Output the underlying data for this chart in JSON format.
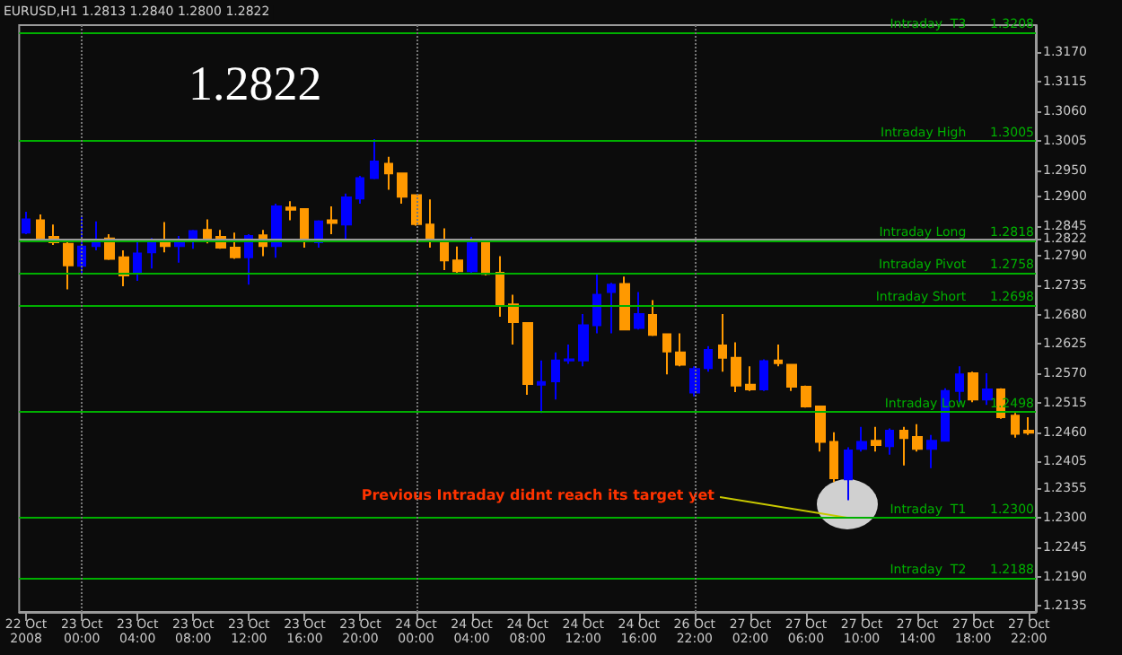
{
  "chart_data": {
    "type": "candlestick",
    "title": "1.2822",
    "subtitle": "EURUSD,H1 1.2813 1.2840 1.2800 1.2822",
    "categories": [
      "22 Oct 2008",
      null,
      null,
      null,
      "23 Oct 00:00",
      null,
      null,
      null,
      "23 Oct 04:00",
      null,
      null,
      null,
      "23 Oct 08:00",
      null,
      null,
      null,
      "23 Oct 12:00",
      null,
      null,
      null,
      "23 Oct 16:00",
      null,
      null,
      null,
      "23 Oct 20:00",
      null,
      null,
      null,
      "24 Oct 00:00",
      null,
      null,
      null,
      "24 Oct 04:00",
      null,
      null,
      null,
      "24 Oct 08:00",
      null,
      null,
      null,
      "24 Oct 12:00",
      null,
      null,
      null,
      "24 Oct 16:00",
      null,
      null,
      null,
      "26 Oct 22:00",
      null,
      null,
      null,
      "27 Oct 02:00",
      null,
      null,
      null,
      "27 Oct 06:00",
      null,
      null,
      null,
      "27 Oct 10:00",
      null,
      null,
      null,
      "27 Oct 14:00",
      null,
      null,
      null,
      "27 Oct 18:00",
      null,
      null,
      null,
      "27 Oct 22:00"
    ],
    "ohlc": [
      [
        1.2833,
        1.2872,
        1.283,
        1.2858
      ],
      [
        1.2856,
        1.2867,
        1.282,
        1.2822
      ],
      [
        1.2825,
        1.2848,
        1.281,
        1.2815
      ],
      [
        1.2812,
        1.2815,
        1.2727,
        1.2772
      ],
      [
        1.2771,
        1.2866,
        1.2758,
        1.2807
      ],
      [
        1.2808,
        1.2854,
        1.28,
        1.282
      ],
      [
        1.2822,
        1.283,
        1.2782,
        1.2784
      ],
      [
        1.2787,
        1.28,
        1.2733,
        1.2753
      ],
      [
        1.2758,
        1.282,
        1.2743,
        1.2794
      ],
      [
        1.2796,
        1.2823,
        1.2766,
        1.2815
      ],
      [
        1.2815,
        1.2853,
        1.2796,
        1.2808
      ],
      [
        1.2808,
        1.2827,
        1.2777,
        1.2817
      ],
      [
        1.2817,
        1.2838,
        1.2803,
        1.2836
      ],
      [
        1.2838,
        1.2858,
        1.2813,
        1.2822
      ],
      [
        1.2825,
        1.2838,
        1.2803,
        1.2805
      ],
      [
        1.2805,
        1.2833,
        1.2784,
        1.2787
      ],
      [
        1.2787,
        1.283,
        1.2736,
        1.2827
      ],
      [
        1.2828,
        1.2838,
        1.2789,
        1.2808
      ],
      [
        1.2808,
        1.2887,
        1.2786,
        1.2882
      ],
      [
        1.288,
        1.2892,
        1.2856,
        1.2876
      ],
      [
        1.2877,
        1.2879,
        1.2805,
        1.2818
      ],
      [
        1.2815,
        1.2856,
        1.2805,
        1.2854
      ],
      [
        1.2856,
        1.2882,
        1.283,
        1.2851
      ],
      [
        1.2848,
        1.2906,
        1.282,
        1.2899
      ],
      [
        1.2897,
        1.2939,
        1.2887,
        1.2935
      ],
      [
        1.2935,
        1.3008,
        1.2933,
        1.2966
      ],
      [
        1.2962,
        1.2975,
        1.2913,
        1.2944
      ],
      [
        1.2944,
        1.2944,
        1.2887,
        1.29
      ],
      [
        1.2903,
        1.2903,
        1.2846,
        1.2849
      ],
      [
        1.2848,
        1.2895,
        1.2805,
        1.2818
      ],
      [
        1.2818,
        1.2841,
        1.2763,
        1.2781
      ],
      [
        1.2781,
        1.2807,
        1.2758,
        1.2761
      ],
      [
        1.2761,
        1.2825,
        1.2758,
        1.2817
      ],
      [
        1.2817,
        1.282,
        1.2753,
        1.2756
      ],
      [
        1.2758,
        1.2789,
        1.2676,
        1.2699
      ],
      [
        1.2699,
        1.2717,
        1.2624,
        1.2666
      ],
      [
        1.2664,
        1.2664,
        1.253,
        1.255
      ],
      [
        1.2549,
        1.2594,
        1.2496,
        1.2554
      ],
      [
        1.2555,
        1.2609,
        1.2521,
        1.2594
      ],
      [
        1.2594,
        1.2624,
        1.2588,
        1.2596
      ],
      [
        1.2594,
        1.2681,
        1.2583,
        1.266
      ],
      [
        1.266,
        1.2756,
        1.2645,
        1.2717
      ],
      [
        1.2722,
        1.2739,
        1.2645,
        1.2736
      ],
      [
        1.2737,
        1.2751,
        1.2651,
        1.2652
      ],
      [
        1.2655,
        1.2722,
        1.2652,
        1.2681
      ],
      [
        1.2679,
        1.2707,
        1.264,
        1.2642
      ],
      [
        1.2643,
        1.2643,
        1.2568,
        1.2611
      ],
      [
        1.2609,
        1.2645,
        1.2583,
        1.2586
      ],
      [
        1.2534,
        1.2583,
        1.2527,
        1.2578
      ],
      [
        1.258,
        1.2621,
        1.2573,
        1.2614
      ],
      [
        1.2622,
        1.2681,
        1.2573,
        1.2599
      ],
      [
        1.2599,
        1.2628,
        1.2535,
        1.2547
      ],
      [
        1.2549,
        1.2583,
        1.2537,
        1.254
      ],
      [
        1.254,
        1.2596,
        1.2537,
        1.2593
      ],
      [
        1.2594,
        1.2624,
        1.2583,
        1.2589
      ],
      [
        1.2586,
        1.2588,
        1.2537,
        1.2545
      ],
      [
        1.2545,
        1.2547,
        1.2506,
        1.2508
      ],
      [
        1.2508,
        1.2508,
        1.2424,
        1.2442
      ],
      [
        1.2442,
        1.246,
        1.2367,
        1.2374
      ],
      [
        1.2372,
        1.2432,
        1.2333,
        1.2426
      ],
      [
        1.2429,
        1.247,
        1.2424,
        1.2442
      ],
      [
        1.2444,
        1.247,
        1.2424,
        1.2436
      ],
      [
        1.2434,
        1.2467,
        1.2418,
        1.2463
      ],
      [
        1.2463,
        1.247,
        1.2398,
        1.2449
      ],
      [
        1.2451,
        1.2475,
        1.2424,
        1.2429
      ],
      [
        1.2429,
        1.2455,
        1.2393,
        1.2444
      ],
      [
        1.2444,
        1.2542,
        1.2444,
        1.2537
      ],
      [
        1.2537,
        1.2583,
        1.2516,
        1.2568
      ],
      [
        1.257,
        1.2573,
        1.2516,
        1.2521
      ],
      [
        1.2521,
        1.257,
        1.2511,
        1.254
      ],
      [
        1.254,
        1.2542,
        1.2485,
        1.2488
      ],
      [
        1.2491,
        1.2496,
        1.245,
        1.2457
      ],
      [
        1.2463,
        1.2488,
        1.2455,
        1.2459
      ]
    ],
    "colors": [
      "#0000ff",
      "#ff9900",
      "#ff9900",
      "#ff9900",
      "#0000ff",
      "#0000ff",
      "#ff9900",
      "#ff9900",
      "#0000ff",
      "#0000ff",
      "#ff9900",
      "#0000ff",
      "#0000ff",
      "#ff9900",
      "#ff9900",
      "#ff9900",
      "#0000ff",
      "#ff9900",
      "#0000ff",
      "#ff9900",
      "#ff9900",
      "#0000ff",
      "#ff9900",
      "#0000ff",
      "#0000ff",
      "#0000ff",
      "#ff9900",
      "#ff9900",
      "#ff9900",
      "#ff9900",
      "#ff9900",
      "#ff9900",
      "#0000ff",
      "#ff9900",
      "#ff9900",
      "#ff9900",
      "#ff9900",
      "#0000ff",
      "#0000ff",
      "#0000ff",
      "#0000ff",
      "#0000ff",
      "#0000ff",
      "#ff9900",
      "#0000ff",
      "#ff9900",
      "#ff9900",
      "#ff9900",
      "#0000ff",
      "#0000ff",
      "#ff9900",
      "#ff9900",
      "#ff9900",
      "#0000ff",
      "#ff9900",
      "#ff9900",
      "#ff9900",
      "#ff9900",
      "#ff9900",
      "#0000ff",
      "#0000ff",
      "#ff9900",
      "#0000ff",
      "#ff9900",
      "#ff9900",
      "#0000ff",
      "#0000ff",
      "#0000ff",
      "#ff9900",
      "#0000ff",
      "#ff9900",
      "#ff9900",
      "#ff9900"
    ],
    "ylim": [
      1.2124,
      1.3221
    ],
    "yticks": [
      {
        "value": 1.317,
        "label": "1.3170"
      },
      {
        "value": 1.3115,
        "label": "1.3115"
      },
      {
        "value": 1.306,
        "label": "1.3060"
      },
      {
        "value": 1.3005,
        "label": "1.3005"
      },
      {
        "value": 1.295,
        "label": "1.2950"
      },
      {
        "value": 1.29,
        "label": "1.2900"
      },
      {
        "value": 1.2845,
        "label": "1.2845"
      },
      {
        "value": 1.2822,
        "label": "1.2822"
      },
      {
        "value": 1.279,
        "label": "1.2790"
      },
      {
        "value": 1.2735,
        "label": "1.2735"
      },
      {
        "value": 1.268,
        "label": "1.2680"
      },
      {
        "value": 1.2625,
        "label": "1.2625"
      },
      {
        "value": 1.257,
        "label": "1.2570"
      },
      {
        "value": 1.2515,
        "label": "1.2515"
      },
      {
        "value": 1.246,
        "label": "1.2460"
      },
      {
        "value": 1.2405,
        "label": "1.2405"
      },
      {
        "value": 1.2355,
        "label": "1.2355"
      },
      {
        "value": 1.23,
        "label": "1.2300"
      },
      {
        "value": 1.2245,
        "label": "1.2245"
      },
      {
        "value": 1.219,
        "label": "1.2190"
      },
      {
        "value": 1.2135,
        "label": "1.2135"
      }
    ],
    "ref_lines": [
      {
        "axis": "y",
        "value": 1.3208,
        "label": "Intraday  T3      1.3208",
        "color": "#00b000"
      },
      {
        "axis": "y",
        "value": 1.3005,
        "label": "Intraday High      1.3005",
        "color": "#00b000"
      },
      {
        "axis": "y",
        "value": 1.2822,
        "color": "#9a9a9a"
      },
      {
        "axis": "y",
        "value": 1.2818,
        "label": "Intraday Long      1.2818",
        "color": "#00b000"
      },
      {
        "axis": "y",
        "value": 1.2758,
        "label": "Intraday Pivot      1.2758",
        "color": "#00b000"
      },
      {
        "axis": "y",
        "value": 1.2698,
        "label": "Intraday Short      1.2698",
        "color": "#00b000"
      },
      {
        "axis": "y",
        "value": 1.2498,
        "label": "Intraday Low      1.2498",
        "color": "#00b000"
      },
      {
        "axis": "y",
        "value": 1.23,
        "label": "Intraday  T1      1.2300",
        "color": "#00b000"
      },
      {
        "axis": "y",
        "value": 1.2188,
        "label": "Intraday  T2      1.2188",
        "color": "#00b000"
      },
      {
        "axis": "x",
        "value": "23 Oct 00:00",
        "color": "#777777",
        "line_style": "dotted"
      },
      {
        "axis": "x",
        "value": "24 Oct 00:00",
        "color": "#777777",
        "line_style": "dotted"
      },
      {
        "axis": "x",
        "value": "26 Oct 22:00",
        "color": "#777777",
        "line_style": "dotted"
      }
    ],
    "annotations": [
      {
        "text": "Previous Intraday didnt reach its target yet",
        "y": 1.23
      }
    ],
    "grid": false
  }
}
